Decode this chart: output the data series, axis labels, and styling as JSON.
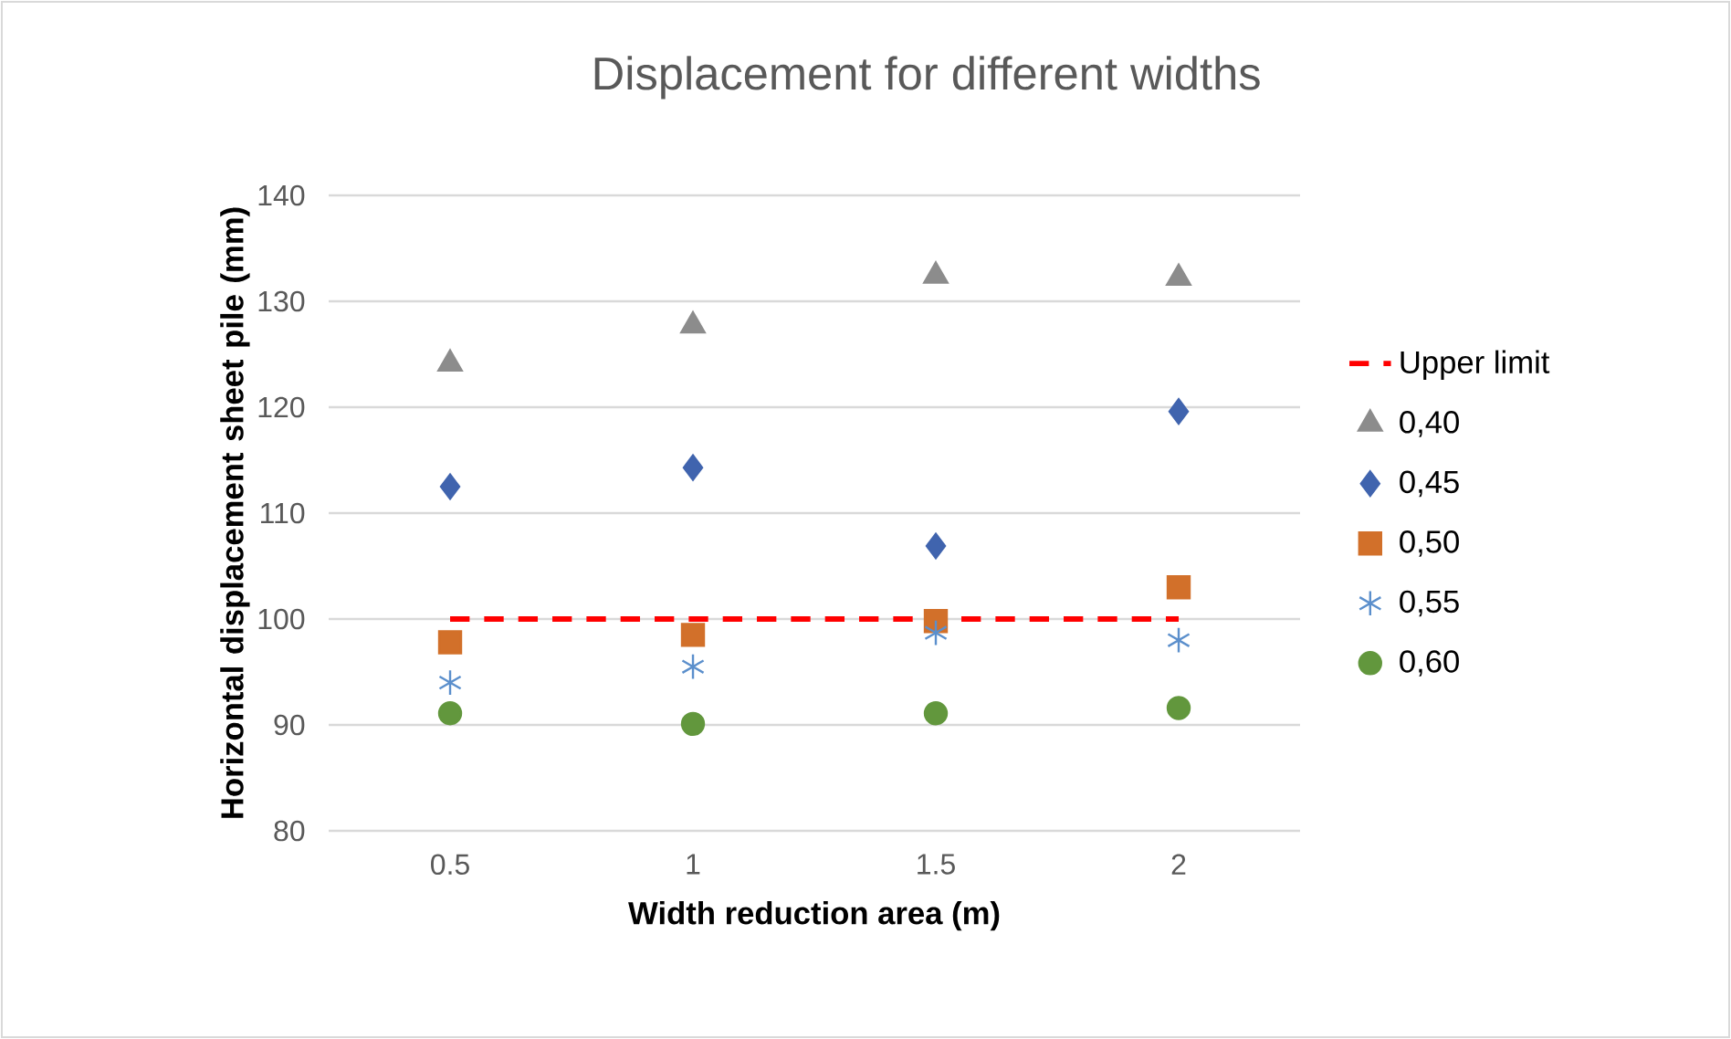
{
  "chart_data": {
    "type": "scatter",
    "title": "Displacement for different widths",
    "xlabel": "Width reduction area (m)",
    "ylabel": "Horizontal displacement sheet pile (mm)",
    "categories": [
      "0.5",
      "1",
      "1.5",
      "2"
    ],
    "ylim": [
      80,
      140
    ],
    "yticks": [
      80,
      90,
      100,
      110,
      120,
      130,
      140
    ],
    "grid": "y",
    "legend": "right",
    "series": [
      {
        "name": "Upper limit",
        "type": "line",
        "color": "#ff0000",
        "line_style": "dashed",
        "marker": "none",
        "values": [
          100,
          100,
          100,
          100
        ]
      },
      {
        "name": "0,40",
        "color": "#8c8c8c",
        "marker": "triangle",
        "values": [
          124.1,
          127.7,
          132.4,
          132.2
        ]
      },
      {
        "name": "0,45",
        "color": "#4064ae",
        "marker": "diamond",
        "values": [
          112.5,
          114.3,
          106.9,
          119.6
        ]
      },
      {
        "name": "0,50",
        "color": "#d2702a",
        "marker": "square",
        "values": [
          97.8,
          98.5,
          99.8,
          103.0
        ]
      },
      {
        "name": "0,55",
        "color": "#5b8fcc",
        "marker": "cross",
        "values": [
          94.0,
          95.5,
          98.7,
          98.0
        ]
      },
      {
        "name": "0,60",
        "color": "#62973d",
        "marker": "circle",
        "values": [
          91.1,
          90.1,
          91.1,
          91.6
        ]
      }
    ]
  }
}
